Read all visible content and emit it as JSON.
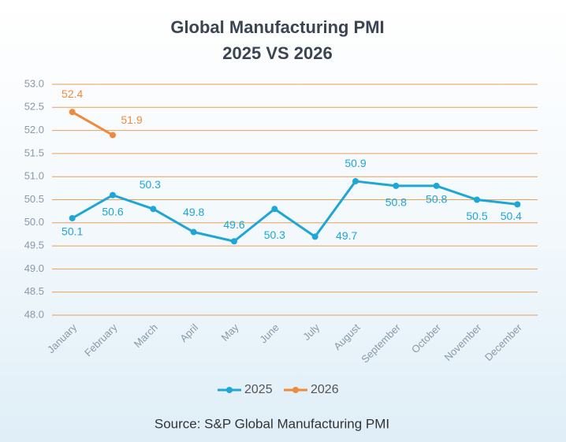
{
  "chart_data": {
    "type": "line",
    "title": "Global Manufacturing PMI",
    "subtitle": "2025 VS 2026",
    "source": "Source: S&P Global Manufacturing PMI",
    "categories": [
      "January",
      "February",
      "March",
      "April",
      "May",
      "June",
      "July",
      "August",
      "September",
      "October",
      "November",
      "December"
    ],
    "series": [
      {
        "name": "2025",
        "color": "#1ea6d6",
        "values": [
          50.1,
          50.6,
          50.3,
          49.8,
          49.6,
          50.3,
          49.7,
          50.9,
          50.8,
          50.8,
          50.5,
          50.4
        ]
      },
      {
        "name": "2026",
        "color": "#ef8a3c",
        "values": [
          52.4,
          51.9,
          null,
          null,
          null,
          null,
          null,
          null,
          null,
          null,
          null,
          null
        ]
      }
    ],
    "ylim": [
      48,
      53
    ],
    "yticks": [
      {
        "value": 48,
        "label": "48.0"
      },
      48.5,
      {
        "value": 49,
        "label": "49.0"
      },
      49.5,
      {
        "value": 50,
        "label": "50.0"
      },
      50.5,
      {
        "value": 51,
        "label": "51.0"
      },
      51.5,
      {
        "value": 52,
        "label": "52.0"
      },
      52.5,
      {
        "value": 53,
        "label": "53.0"
      }
    ],
    "grid": true,
    "legend": "bottom"
  }
}
